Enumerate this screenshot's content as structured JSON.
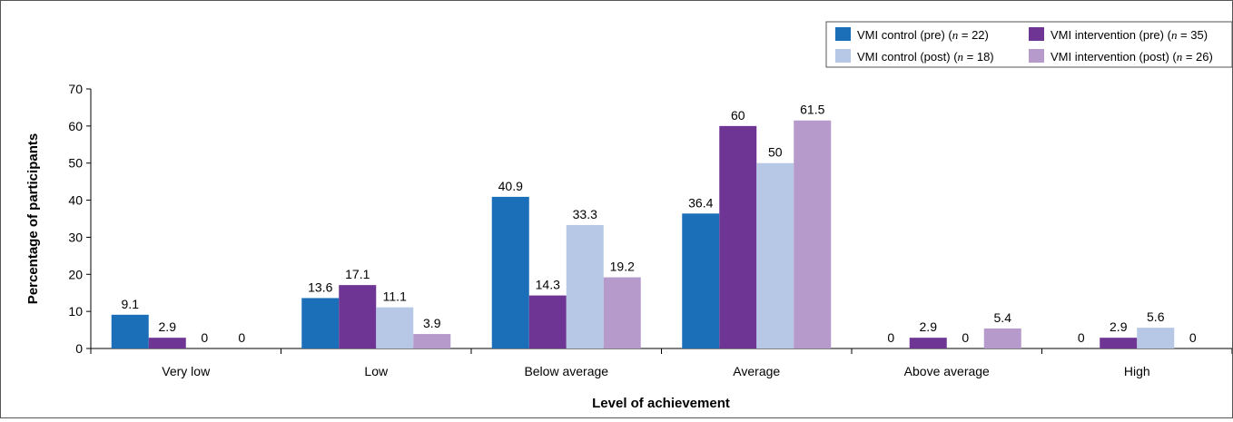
{
  "chart_data": {
    "type": "bar",
    "title": "",
    "xlabel": "Level of achievement",
    "ylabel": "Percentage of participants",
    "ylim": [
      0,
      70
    ],
    "yticks": [
      0,
      10,
      20,
      30,
      40,
      50,
      60,
      70
    ],
    "grid": false,
    "legend_position": "top-right",
    "categories": [
      "Very low",
      "Low",
      "Below average",
      "Average",
      "Above average",
      "High"
    ],
    "series": [
      {
        "name": "VMI control (pre) (n = 22)",
        "legend": [
          "VMI control (pre) (",
          "n",
          " = 22)"
        ],
        "color": "#1b6fb8",
        "values": [
          9.1,
          13.6,
          40.9,
          36.4,
          0,
          0
        ]
      },
      {
        "name": "VMI intervention (pre) (n = 35)",
        "legend": [
          "VMI intervention (pre) (",
          "n",
          " = 35)"
        ],
        "color": "#6e3595",
        "values": [
          2.9,
          17.1,
          14.3,
          60,
          2.9,
          2.9
        ]
      },
      {
        "name": "VMI control (post) (n = 18)",
        "legend": [
          "VMI control (post) (",
          "n",
          " = 18)"
        ],
        "color": "#b6c8e6",
        "values": [
          0,
          11.1,
          33.3,
          50,
          0,
          5.6
        ]
      },
      {
        "name": "VMI intervention (post) (n = 26)",
        "legend": [
          "VMI intervention (post) (",
          "n",
          " = 26)"
        ],
        "color": "#b69acb",
        "values": [
          0,
          3.9,
          19.2,
          61.5,
          5.4,
          0
        ]
      }
    ],
    "data_labels": [
      [
        "9.1",
        "13.6",
        "40.9",
        "36.4",
        "0",
        "0"
      ],
      [
        "2.9",
        "17.1",
        "14.3",
        "60",
        "2.9",
        "2.9"
      ],
      [
        "0",
        "11.1",
        "33.3",
        "50",
        "0",
        "5.6"
      ],
      [
        "0",
        "3.9",
        "19.2",
        "61.5",
        "5.4",
        "0"
      ]
    ]
  }
}
